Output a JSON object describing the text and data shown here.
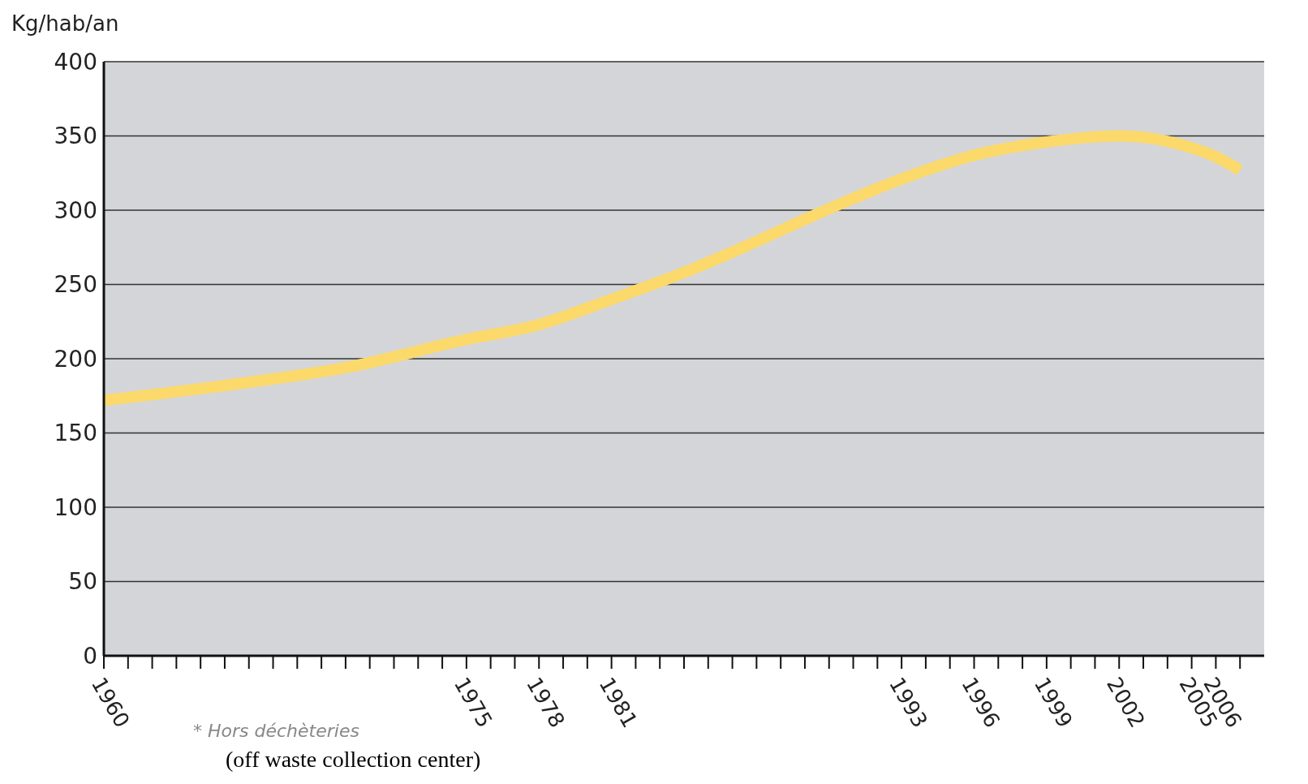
{
  "chart_data": {
    "type": "line",
    "ylabel": "Kg/hab/an",
    "x": [
      1960,
      1965,
      1970,
      1975,
      1978,
      1981,
      1984,
      1987,
      1990,
      1993,
      1996,
      1999,
      2002,
      2005,
      2006,
      2007
    ],
    "series": [
      {
        "color": "#fcd96b",
        "values": [
          172,
          182,
          194,
          213,
          223,
          240,
          258,
          279,
          301,
          321,
          337,
          346,
          350,
          342,
          336,
          327
        ]
      }
    ],
    "xlim": [
      1960,
      2008
    ],
    "xticks": [
      1960,
      {
        "value": 1961,
        "label": null
      },
      {
        "value": 1962,
        "label": null
      },
      {
        "value": 1963,
        "label": null
      },
      {
        "value": 1964,
        "label": null
      },
      {
        "value": 1965,
        "label": null
      },
      {
        "value": 1966,
        "label": null
      },
      {
        "value": 1967,
        "label": null
      },
      {
        "value": 1968,
        "label": null
      },
      {
        "value": 1969,
        "label": null
      },
      {
        "value": 1970,
        "label": null
      },
      {
        "value": 1971,
        "label": null
      },
      {
        "value": 1972,
        "label": null
      },
      {
        "value": 1973,
        "label": null
      },
      {
        "value": 1974,
        "label": null
      },
      1975,
      {
        "value": 1976,
        "label": null
      },
      {
        "value": 1977,
        "label": null
      },
      1978,
      {
        "value": 1979,
        "label": null
      },
      {
        "value": 1980,
        "label": null
      },
      1981,
      {
        "value": 1982,
        "label": null
      },
      {
        "value": 1983,
        "label": null
      },
      {
        "value": 1984,
        "label": null
      },
      {
        "value": 1985,
        "label": null
      },
      {
        "value": 1986,
        "label": null
      },
      {
        "value": 1987,
        "label": null
      },
      {
        "value": 1988,
        "label": null
      },
      {
        "value": 1989,
        "label": null
      },
      {
        "value": 1990,
        "label": null
      },
      {
        "value": 1991,
        "label": null
      },
      {
        "value": 1992,
        "label": null
      },
      1993,
      {
        "value": 1994,
        "label": null
      },
      {
        "value": 1995,
        "label": null
      },
      1996,
      {
        "value": 1997,
        "label": null
      },
      {
        "value": 1998,
        "label": null
      },
      1999,
      {
        "value": 2000,
        "label": null
      },
      {
        "value": 2001,
        "label": null
      },
      2002,
      {
        "value": 2003,
        "label": null
      },
      {
        "value": 2004,
        "label": null
      },
      2005,
      2006,
      {
        "value": 2007,
        "label": null
      }
    ],
    "ylim": [
      0,
      400
    ],
    "yticks": [
      0,
      50,
      100,
      150,
      200,
      250,
      300,
      350,
      400
    ],
    "grid": "y",
    "marker": "none",
    "line_style": "solid",
    "annotations": [
      "* Hors déchèteries",
      "(off waste collection center)"
    ]
  }
}
